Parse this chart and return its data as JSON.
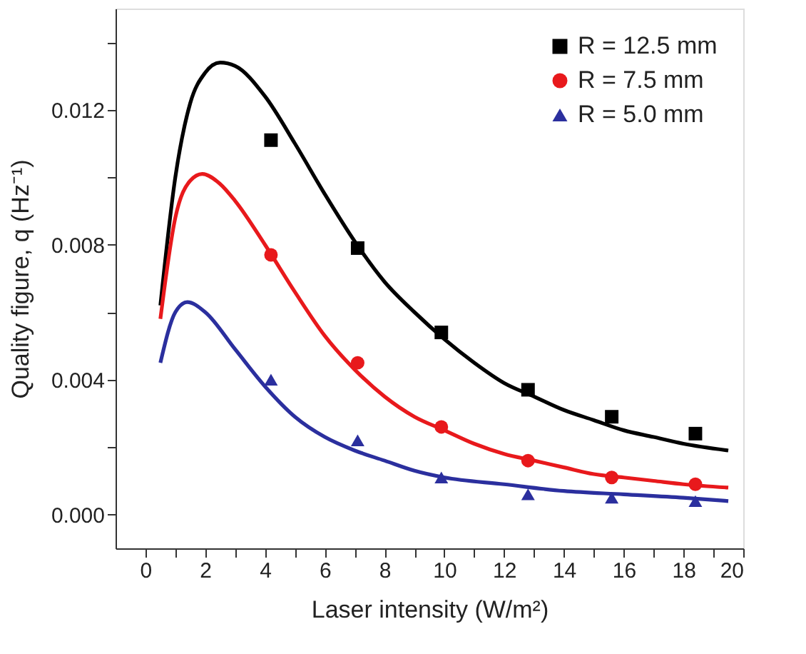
{
  "chart_data": {
    "type": "scatter",
    "xlabel": "Laser intensity (W/m²)",
    "ylabel": "Quality figure, q (Hz⁻¹)",
    "xlim": [
      -1,
      20
    ],
    "ylim": [
      -0.001,
      0.015
    ],
    "xticks": [
      0,
      {
        "value": 1,
        "label": null
      },
      2,
      {
        "value": 3,
        "label": null
      },
      4,
      {
        "value": 5,
        "label": null
      },
      6,
      {
        "value": 7,
        "label": null
      },
      8,
      {
        "value": 9,
        "label": null
      },
      10,
      {
        "value": 11,
        "label": null
      },
      12,
      {
        "value": 13,
        "label": null
      },
      14,
      {
        "value": 15,
        "label": null
      },
      16,
      {
        "value": 17,
        "label": null
      },
      18,
      {
        "value": 19,
        "label": null
      },
      20
    ],
    "yticks": [
      {
        "value": 0,
        "label": "0.000"
      },
      {
        "value": 0.002,
        "label": null
      },
      {
        "value": 0.004,
        "label": "0.004"
      },
      {
        "value": 0.006,
        "label": null
      },
      {
        "value": 0.008,
        "label": "0.008"
      },
      {
        "value": 0.01,
        "label": null
      },
      {
        "value": 0.012,
        "label": "0.012"
      },
      {
        "value": 0.014,
        "label": null
      }
    ],
    "grid": false,
    "legend": "top right",
    "series": [
      {
        "name": "R = 12.5 mm",
        "color": "#000000",
        "marker": "square",
        "x": [
          4.2,
          7.1,
          9.9,
          12.8,
          15.6,
          18.4
        ],
        "values": [
          0.0111,
          0.0079,
          0.0054,
          0.0037,
          0.0029,
          0.0024
        ]
      },
      {
        "name": "R =   7.5 mm",
        "color": "#e8191c",
        "marker": "circle",
        "x": [
          4.2,
          7.1,
          9.9,
          12.8,
          15.6,
          18.4
        ],
        "values": [
          0.0077,
          0.0045,
          0.0026,
          0.0016,
          0.0011,
          0.0009
        ]
      },
      {
        "name": "R =   5.0 mm",
        "color": "#2b2f9e",
        "marker": "triangle",
        "x": [
          4.2,
          7.1,
          9.9,
          12.8,
          15.6,
          18.4
        ],
        "values": [
          0.004,
          0.0022,
          0.0011,
          0.0006,
          0.0005,
          0.0004
        ]
      },
      {
        "type": "line",
        "color": "#000000",
        "x": [
          0.5,
          1,
          1.5,
          2,
          2.5,
          3,
          4,
          5,
          6,
          7,
          8,
          9,
          10,
          11,
          12,
          13,
          14,
          15,
          16,
          17,
          18,
          19.5
        ],
        "values": [
          0.0062,
          0.01,
          0.0122,
          0.0131,
          0.0134,
          0.0133,
          0.0124,
          0.011,
          0.0095,
          0.0081,
          0.0069,
          0.006,
          0.0052,
          0.0045,
          0.0039,
          0.0035,
          0.0031,
          0.0028,
          0.0025,
          0.0023,
          0.0021,
          0.0019
        ]
      },
      {
        "type": "line",
        "color": "#e8191c",
        "x": [
          0.5,
          1,
          1.5,
          1.9,
          2.5,
          3,
          4,
          5,
          6,
          7,
          8,
          9,
          10,
          11,
          12,
          13,
          14,
          15,
          16,
          17,
          18,
          19.5
        ],
        "values": [
          0.0058,
          0.0088,
          0.0099,
          0.0101,
          0.0098,
          0.0093,
          0.008,
          0.0066,
          0.0053,
          0.0043,
          0.0035,
          0.0029,
          0.0025,
          0.0021,
          0.0018,
          0.0016,
          0.0014,
          0.0012,
          0.0011,
          0.001,
          0.0009,
          0.0008
        ]
      },
      {
        "type": "line",
        "color": "#2b2f9e",
        "x": [
          0.5,
          1,
          1.4,
          2,
          3,
          4,
          5,
          6,
          7,
          8,
          9,
          10,
          12,
          14,
          16,
          18,
          19.5
        ],
        "values": [
          0.0045,
          0.006,
          0.0063,
          0.006,
          0.0049,
          0.0038,
          0.0029,
          0.0023,
          0.0019,
          0.0016,
          0.0013,
          0.0011,
          0.0009,
          0.0007,
          0.0006,
          0.0005,
          0.0004
        ]
      }
    ]
  }
}
